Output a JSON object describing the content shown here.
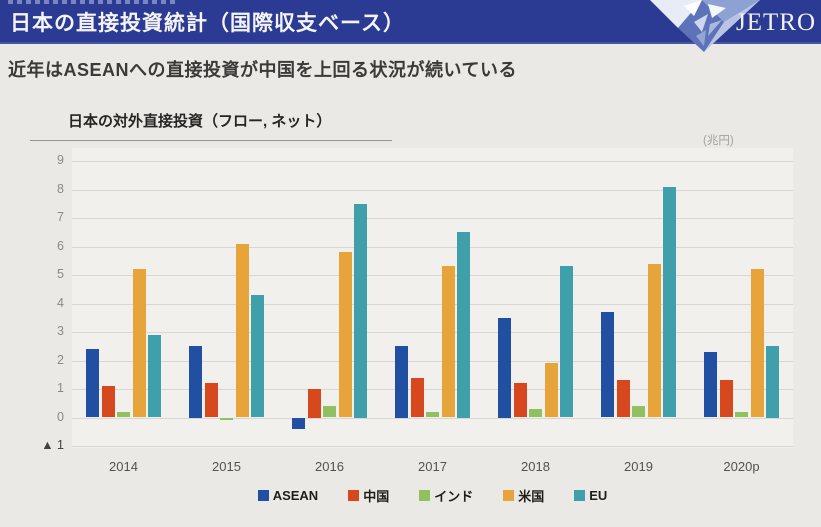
{
  "header": {
    "title": "日本の直接投資統計（国際収支ベース）",
    "logo_text": "JETRO",
    "bg_color": "#2b3a92"
  },
  "subtitle": "近年はASEANへの直接投資が中国を上回る状況が続いている",
  "chart": {
    "title": "日本の対外直接投資（フロー, ネット）",
    "unit_label": "(兆円)",
    "negative_prefix": "▲"
  },
  "chart_data": {
    "type": "bar",
    "title": "日本の対外直接投資（フロー, ネット）",
    "unit": "兆円",
    "categories": [
      "2014",
      "2015",
      "2016",
      "2017",
      "2018",
      "2019",
      "2020p"
    ],
    "series": [
      {
        "name": "ASEAN",
        "color": "#2150a3",
        "values": [
          2.4,
          2.5,
          -0.4,
          2.5,
          3.5,
          3.7,
          2.3
        ]
      },
      {
        "name": "中国",
        "color": "#d8481f",
        "values": [
          1.1,
          1.2,
          1.0,
          1.4,
          1.2,
          1.3,
          1.3
        ]
      },
      {
        "name": "インド",
        "color": "#90c161",
        "values": [
          0.2,
          -0.1,
          0.4,
          0.2,
          0.3,
          0.4,
          0.2
        ]
      },
      {
        "name": "米国",
        "color": "#e6a43a",
        "values": [
          5.2,
          6.1,
          5.8,
          5.3,
          1.9,
          5.4,
          5.2
        ]
      },
      {
        "name": "EU",
        "color": "#3fa0ab",
        "values": [
          2.9,
          4.3,
          7.5,
          6.5,
          5.3,
          8.1,
          2.5
        ]
      }
    ],
    "ylim": [
      -1,
      9
    ],
    "yticks": [
      9,
      8,
      7,
      6,
      5,
      4,
      3,
      2,
      1,
      0,
      -1
    ],
    "grid": true,
    "legend_position": "bottom"
  }
}
